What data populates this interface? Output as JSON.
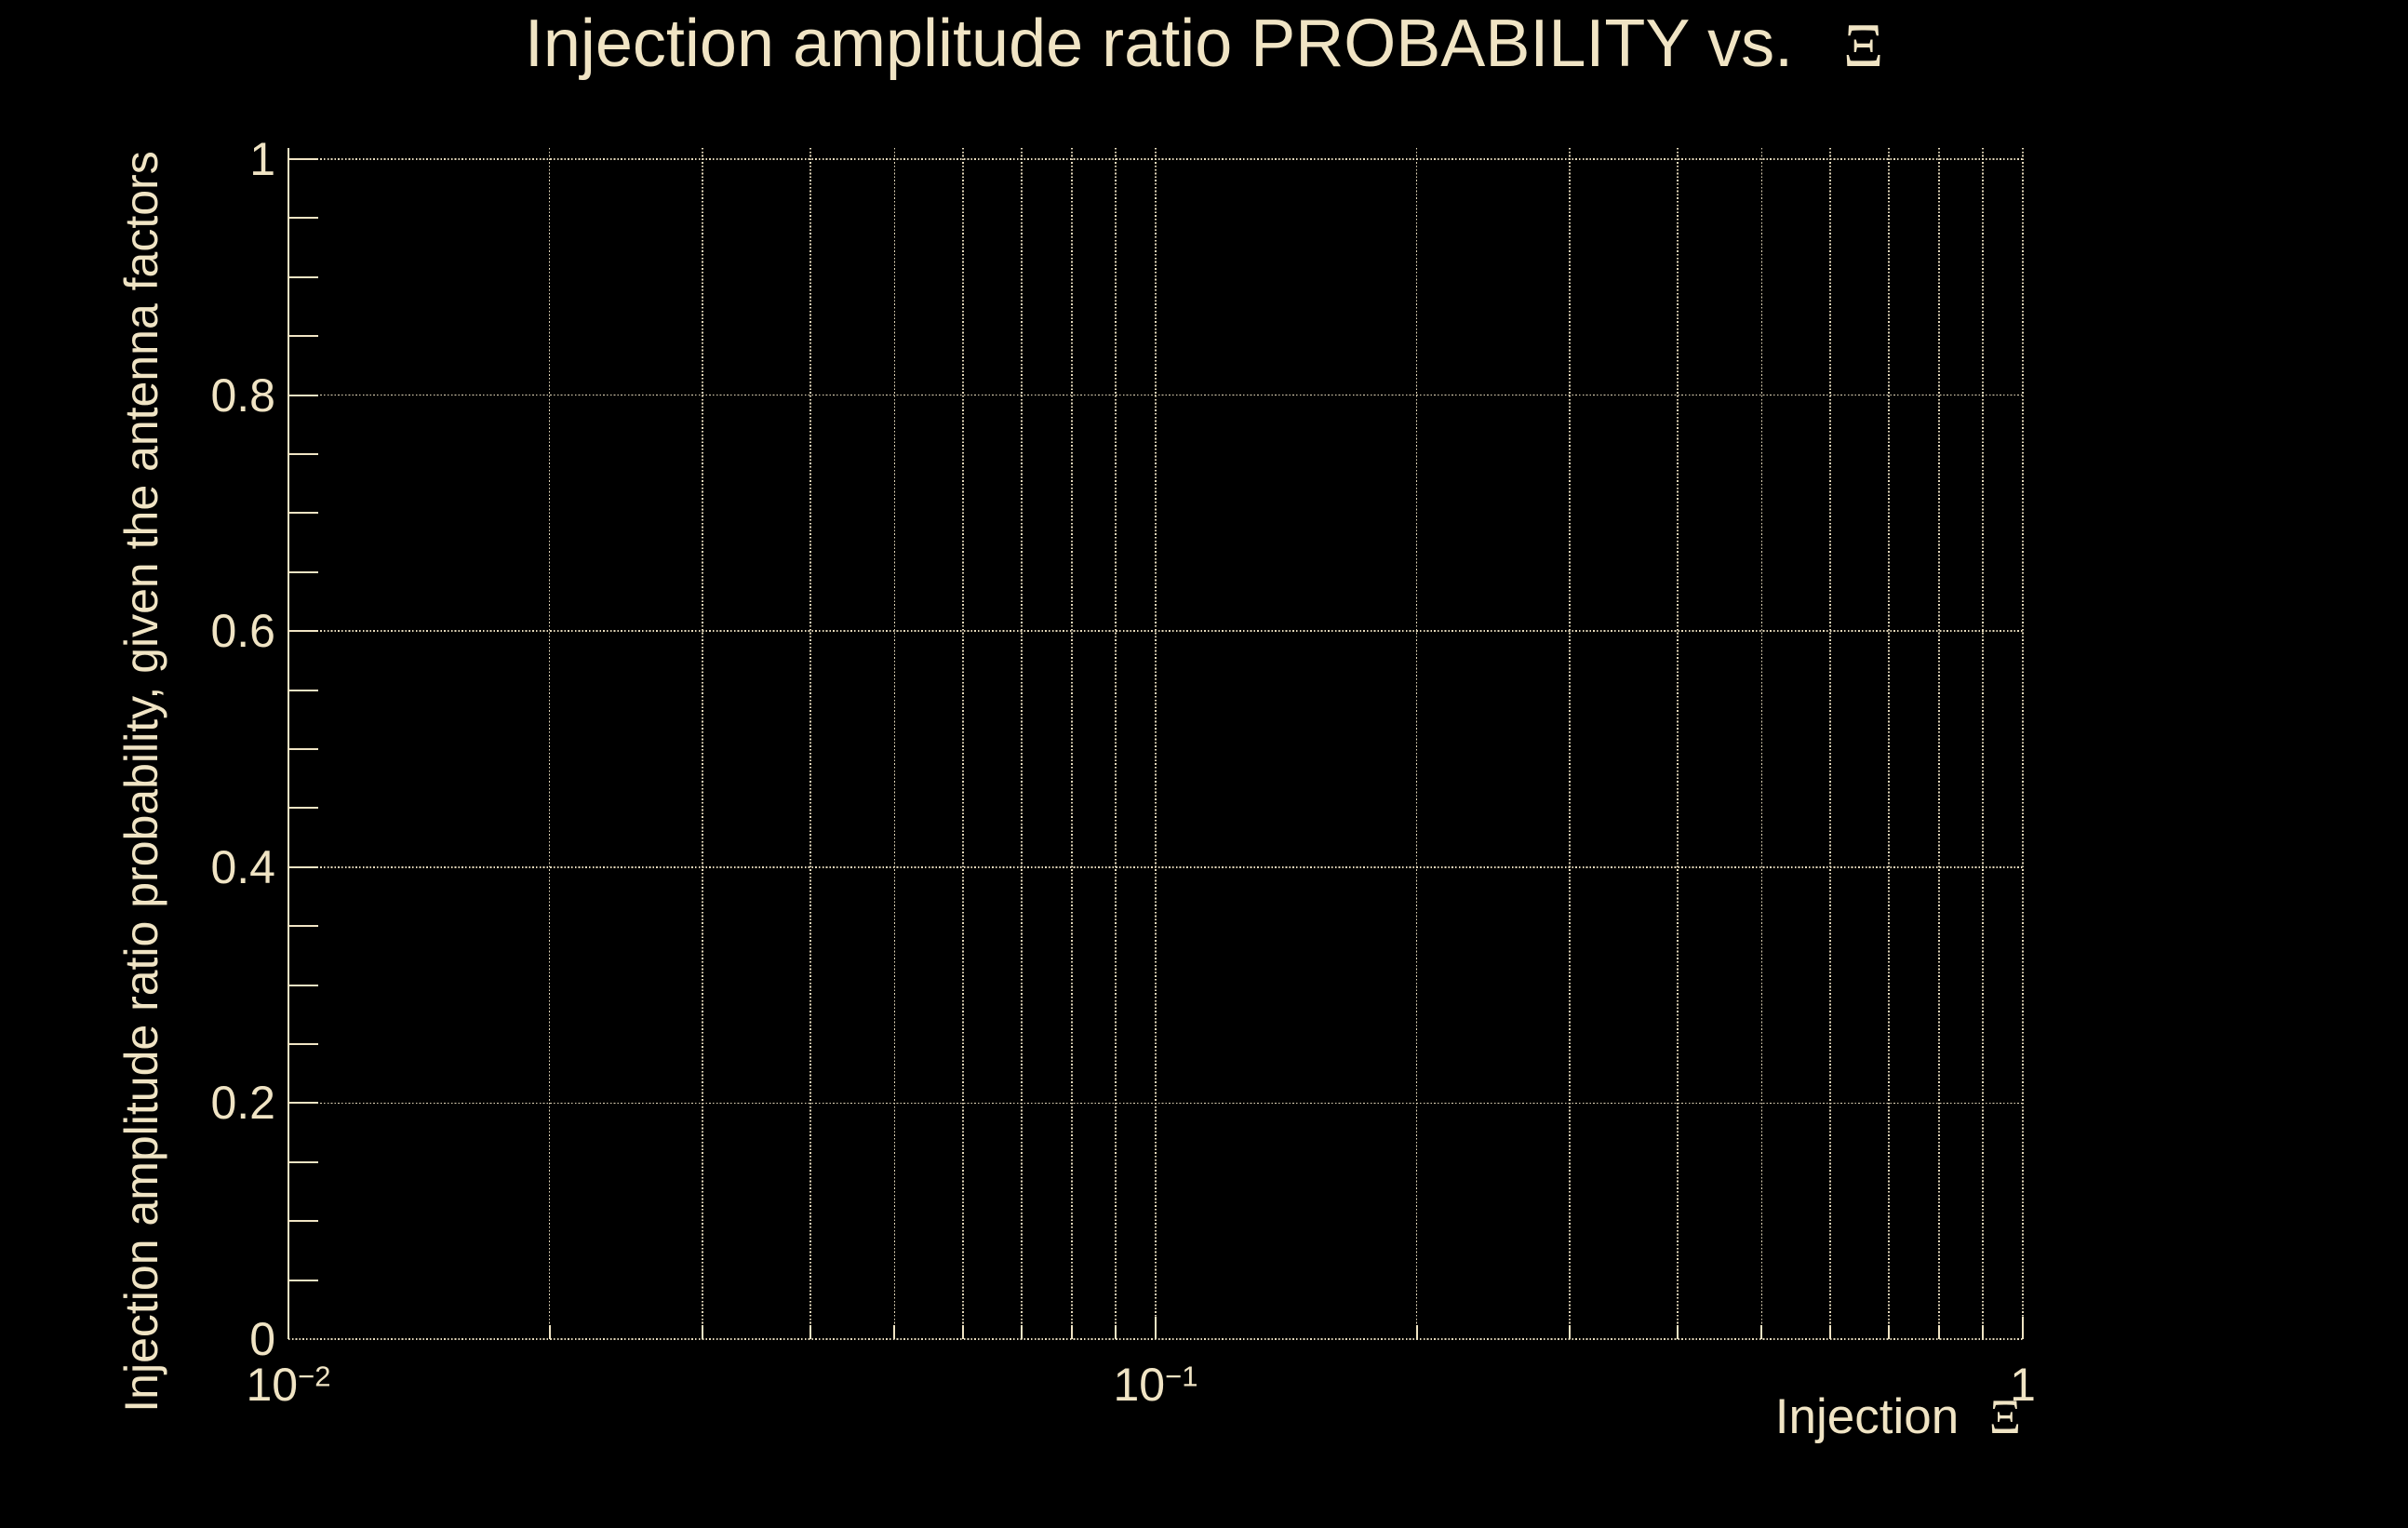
{
  "colors": {
    "background": "#000000",
    "foreground": "#F0E4C4"
  },
  "chart_data": {
    "type": "line",
    "title": "Injection amplitude ratio PROBABILITY vs.",
    "title_symbol": "Ξ",
    "xlabel_text": "Injection",
    "xlabel_symbol": "Ξ",
    "ylabel": "Injection amplitude ratio probability, given the antenna factors",
    "x_scale": "log",
    "xlim": [
      0.01,
      1
    ],
    "ylim": [
      0,
      1
    ],
    "grid": true,
    "legend": null,
    "series": [],
    "x_tick_labels": [
      {
        "base": "10",
        "exp": "−2",
        "value": 0.01
      },
      {
        "base": "10",
        "exp": "−1",
        "value": 0.1
      },
      {
        "base": "1",
        "exp": "",
        "value": 1
      }
    ],
    "y_tick_labels": [
      {
        "label": "1",
        "value": 1
      },
      {
        "label": "0.8",
        "value": 0.8
      },
      {
        "label": "0.6",
        "value": 0.6
      },
      {
        "label": "0.4",
        "value": 0.4
      },
      {
        "label": "0.2",
        "value": 0.2
      },
      {
        "label": "0",
        "value": 0
      }
    ],
    "y_minor_tick_step": 0.05
  }
}
